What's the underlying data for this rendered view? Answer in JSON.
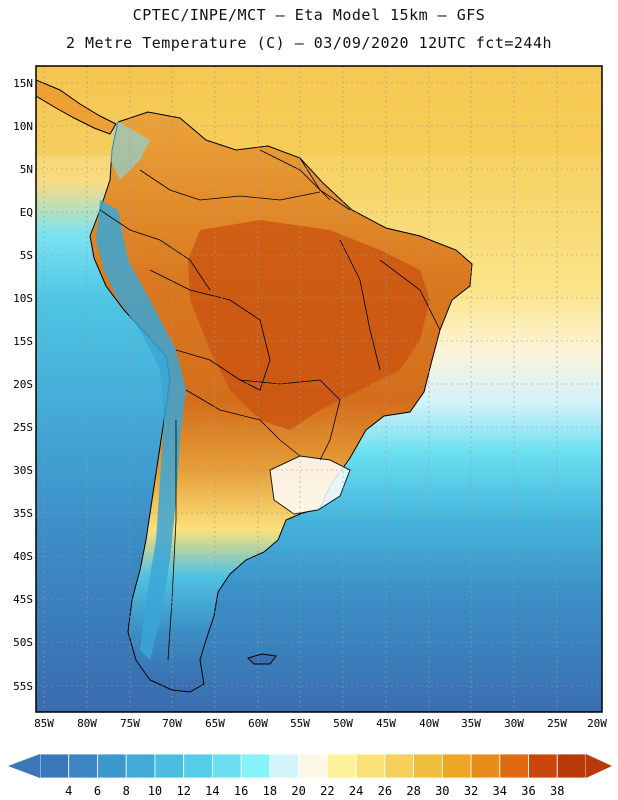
{
  "title": {
    "line1": "CPTEC/INPE/MCT –  Eta Model 15km – GFS",
    "line2": "2 Metre Temperature (C) – 03/09/2020 12UTC fct=244h"
  },
  "latitude_labels": [
    "15N",
    "10N",
    "5N",
    "EQ",
    "5S",
    "10S",
    "15S",
    "20S",
    "25S",
    "30S",
    "35S",
    "40S",
    "45S",
    "50S",
    "55S"
  ],
  "longitude_labels": [
    "85W",
    "80W",
    "75W",
    "70W",
    "65W",
    "60W",
    "55W",
    "50W",
    "45W",
    "40W",
    "35W",
    "30W",
    "25W",
    "20W"
  ],
  "colorbar": {
    "values": [
      "4",
      "6",
      "8",
      "10",
      "12",
      "14",
      "16",
      "18",
      "20",
      "22",
      "24",
      "26",
      "28",
      "30",
      "32",
      "34",
      "36",
      "38"
    ],
    "colors": [
      "#3a77b9",
      "#3b86c2",
      "#3d98cc",
      "#43aad6",
      "#4bbde0",
      "#55cde8",
      "#6bdff1",
      "#86f2fa",
      "#d4f4fb",
      "#fdf8e6",
      "#fdf29c",
      "#fae278",
      "#f5d05a",
      "#efbd3e",
      "#eea724",
      "#e88c1c",
      "#e06a12",
      "#c9470c",
      "#b83a08"
    ],
    "low_arrow_color": "#3a77b9",
    "high_arrow_color": "#b83a08"
  }
}
